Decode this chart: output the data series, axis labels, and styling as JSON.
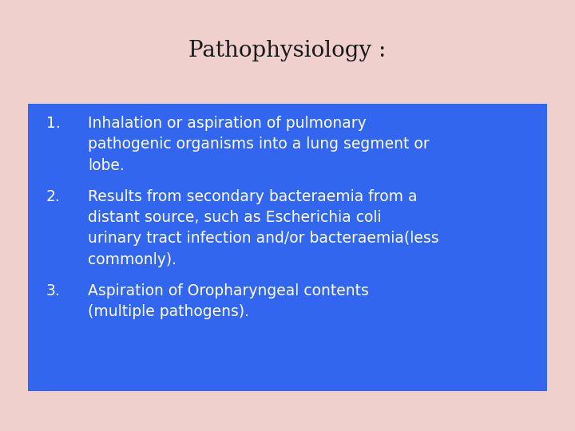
{
  "title": "Pathophysiology :",
  "title_fontsize": 20,
  "title_color": "#1a1a1a",
  "background_color": "#f0d0cc",
  "box_color": "#2b6be6",
  "box_facecolor": "#3366ee",
  "text_color": "#ffffff",
  "text_fontsize": 13.5,
  "number_fontsize": 13.5,
  "items": [
    {
      "number": "1.",
      "lines": [
        "Inhalation or aspiration of pulmonary",
        "pathogenic organisms into a lung segment or",
        "lobe."
      ]
    },
    {
      "number": "2.",
      "lines": [
        "Results from secondary bacteraemia from a",
        "distant source, such as Escherichia coli",
        "urinary tract infection and/or bacteraemia(less",
        "commonly)."
      ]
    },
    {
      "number": "3.",
      "lines": [
        "Aspiration of Oropharyngeal contents",
        "(multiple pathogens)."
      ]
    }
  ]
}
